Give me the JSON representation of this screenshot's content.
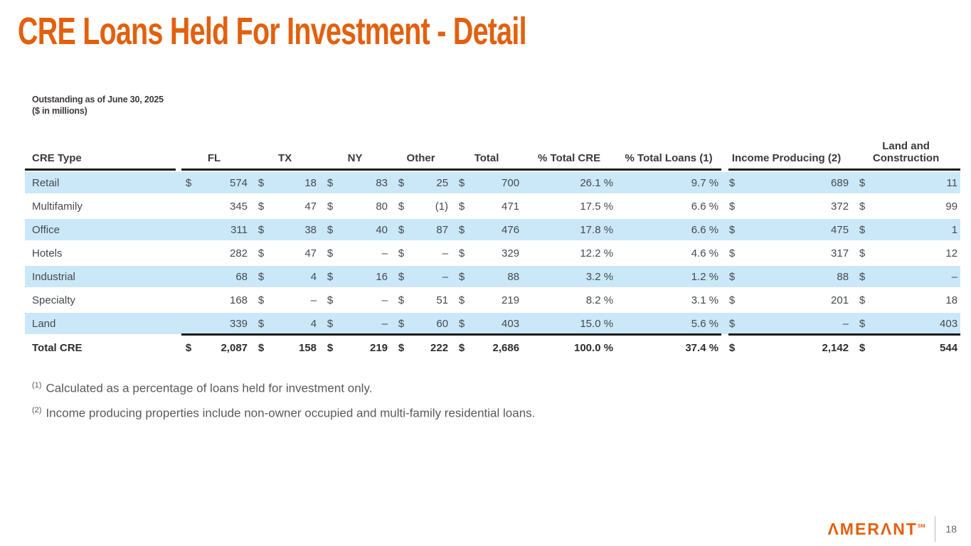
{
  "slide": {
    "title": "CRE Loans Held For Investment - Detail",
    "subtitle_line1": "Outstanding as of June 30, 2025",
    "subtitle_line2": "($ in millions)"
  },
  "colors": {
    "accent_orange": "#E2600E",
    "row_blue": "#CBE8F8",
    "rule_dark": "#1b1b1b"
  },
  "table": {
    "headers": {
      "cre_type": "CRE Type",
      "fl": "FL",
      "tx": "TX",
      "ny": "NY",
      "other": "Other",
      "total": "Total",
      "pct_total_cre": "% Total CRE",
      "pct_total_loans": "% Total Loans (1)",
      "income_producing": "Income Producing (2)",
      "land_construction": "Land and Construction"
    },
    "rows": [
      [
        "Retail",
        "$",
        "574",
        "$",
        "18",
        "$",
        "83",
        "$",
        "25",
        "$",
        "700",
        "26.1 %",
        "9.7 %",
        "$",
        "689",
        "$",
        "11"
      ],
      [
        "Multifamily",
        "",
        "345",
        "$",
        "47",
        "$",
        "80",
        "$",
        "(1)",
        "$",
        "471",
        "17.5 %",
        "6.6 %",
        "$",
        "372",
        "$",
        "99"
      ],
      [
        "Office",
        "",
        "311",
        "$",
        "38",
        "$",
        "40",
        "$",
        "87",
        "$",
        "476",
        "17.8 %",
        "6.6 %",
        "$",
        "475",
        "$",
        "1"
      ],
      [
        "Hotels",
        "",
        "282",
        "$",
        "47",
        "$",
        "–",
        "$",
        "–",
        "$",
        "329",
        "12.2 %",
        "4.6 %",
        "$",
        "317",
        "$",
        "12"
      ],
      [
        "Industrial",
        "",
        "68",
        "$",
        "4",
        "$",
        "16",
        "$",
        "–",
        "$",
        "88",
        "3.2 %",
        "1.2 %",
        "$",
        "88",
        "$",
        "–"
      ],
      [
        "Specialty",
        "",
        "168",
        "$",
        "–",
        "$",
        "–",
        "$",
        "51",
        "$",
        "219",
        "8.2 %",
        "3.1 %",
        "$",
        "201",
        "$",
        "18"
      ],
      [
        "Land",
        "",
        "339",
        "$",
        "4",
        "$",
        "–",
        "$",
        "60",
        "$",
        "403",
        "15.0 %",
        "5.6 %",
        "$",
        "–",
        "$",
        "403"
      ],
      [
        "Total CRE",
        "$",
        "2,087",
        "$",
        "158",
        "$",
        "219",
        "$",
        "222",
        "$",
        "2,686",
        "100.0 %",
        "37.4 %",
        "$",
        "2,142",
        "$",
        "544"
      ]
    ]
  },
  "footnotes": [
    {
      "sup": "(1)",
      "text": "Calculated as a percentage of loans held for investment only."
    },
    {
      "sup": "(2)",
      "text": "Income producing properties include non-owner occupied and multi-family residential loans."
    }
  ],
  "footer": {
    "logo": "ΛMERΛNT",
    "logo_mark": "SM",
    "page": "18"
  }
}
